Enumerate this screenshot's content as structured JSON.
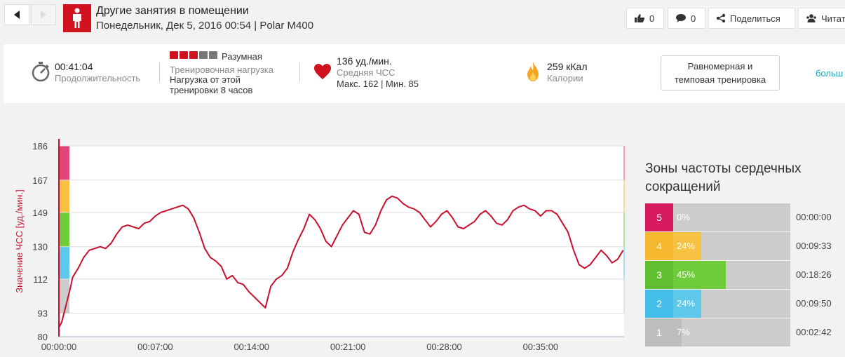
{
  "header": {
    "title": "Другие занятия в помещении",
    "subtitle": "Понедельник, Дек 5, 2016 00:54 | Polar M400",
    "like_count": "0",
    "comment_count": "0",
    "share_label": "Поделиться",
    "follow_label": "Читат"
  },
  "summary": {
    "duration_value": "00:41:04",
    "duration_label": "Продолжительность",
    "load_level": "Разумная",
    "load_filled": 3,
    "load_total": 5,
    "load_label": "Тренировочная нагрузка",
    "load_note_1": "Нагрузка от этой",
    "load_note_2": "тренировки 8 часов",
    "hr_value": "136 уд./мин.",
    "hr_label": "Средняя ЧСС",
    "hr_minmax": "Макс. 162 | Мин. 85",
    "calories_value": "259 кКал",
    "calories_label": "Калории",
    "workout_type": "Равномерная и темповая тренировка",
    "more_link": "больш"
  },
  "chart_data": {
    "type": "line",
    "ylabel": "Значение ЧСС [уд./мин.]",
    "ylim": [
      80,
      186
    ],
    "yticks": [
      "186",
      "167",
      "149",
      "130",
      "112",
      "93",
      "80"
    ],
    "ytick_values": [
      186,
      167,
      149,
      130,
      112,
      93,
      80
    ],
    "xticks": [
      "00:00:00",
      "00:07:00",
      "00:14:00",
      "00:21:00",
      "00:28:00",
      "00:35:00"
    ],
    "xtick_values": [
      0,
      7,
      14,
      21,
      28,
      35
    ],
    "xlim_min": [
      0,
      41.07
    ],
    "line_color": "#c8102e",
    "zone_colors": [
      "#e0457b",
      "#f7c242",
      "#6ecb3a",
      "#5ec8ea",
      "#cccccc"
    ],
    "series": [
      {
        "points": [
          [
            0.0,
            85
          ],
          [
            0.2,
            88
          ],
          [
            0.4,
            94
          ],
          [
            0.6,
            100
          ],
          [
            0.8,
            106
          ],
          [
            1.0,
            113
          ],
          [
            1.4,
            118
          ],
          [
            1.8,
            124
          ],
          [
            2.2,
            128
          ],
          [
            2.6,
            129
          ],
          [
            3.0,
            130
          ],
          [
            3.4,
            129
          ],
          [
            3.8,
            132
          ],
          [
            4.2,
            137
          ],
          [
            4.6,
            141
          ],
          [
            5.0,
            142
          ],
          [
            5.4,
            141
          ],
          [
            5.8,
            140
          ],
          [
            6.2,
            143
          ],
          [
            6.6,
            144
          ],
          [
            7.0,
            147
          ],
          [
            7.4,
            149
          ],
          [
            7.8,
            150
          ],
          [
            8.2,
            151
          ],
          [
            8.6,
            152
          ],
          [
            9.0,
            153
          ],
          [
            9.4,
            151
          ],
          [
            9.8,
            146
          ],
          [
            10.2,
            138
          ],
          [
            10.6,
            129
          ],
          [
            11.0,
            124
          ],
          [
            11.4,
            122
          ],
          [
            11.8,
            119
          ],
          [
            12.2,
            112
          ],
          [
            12.6,
            114
          ],
          [
            13.0,
            110
          ],
          [
            13.4,
            109
          ],
          [
            13.8,
            105
          ],
          [
            14.2,
            102
          ],
          [
            14.6,
            99
          ],
          [
            15.0,
            96
          ],
          [
            15.4,
            108
          ],
          [
            15.8,
            112
          ],
          [
            16.2,
            114
          ],
          [
            16.6,
            118
          ],
          [
            17.0,
            127
          ],
          [
            17.4,
            134
          ],
          [
            17.8,
            140
          ],
          [
            18.2,
            148
          ],
          [
            18.6,
            145
          ],
          [
            19.0,
            140
          ],
          [
            19.4,
            133
          ],
          [
            19.8,
            130
          ],
          [
            20.2,
            136
          ],
          [
            20.6,
            142
          ],
          [
            21.0,
            146
          ],
          [
            21.4,
            150
          ],
          [
            21.8,
            148
          ],
          [
            22.2,
            138
          ],
          [
            22.6,
            137
          ],
          [
            23.0,
            142
          ],
          [
            23.4,
            150
          ],
          [
            23.8,
            156
          ],
          [
            24.2,
            158
          ],
          [
            24.6,
            157
          ],
          [
            25.0,
            154
          ],
          [
            25.4,
            152
          ],
          [
            25.8,
            151
          ],
          [
            26.2,
            149
          ],
          [
            26.6,
            145
          ],
          [
            27.0,
            141
          ],
          [
            27.4,
            144
          ],
          [
            27.8,
            148
          ],
          [
            28.2,
            150
          ],
          [
            28.6,
            146
          ],
          [
            29.0,
            141
          ],
          [
            29.4,
            140
          ],
          [
            29.8,
            142
          ],
          [
            30.2,
            144
          ],
          [
            30.6,
            148
          ],
          [
            31.0,
            150
          ],
          [
            31.4,
            147
          ],
          [
            31.8,
            143
          ],
          [
            32.2,
            142
          ],
          [
            32.6,
            145
          ],
          [
            33.0,
            150
          ],
          [
            33.4,
            152
          ],
          [
            33.8,
            153
          ],
          [
            34.2,
            151
          ],
          [
            34.6,
            150
          ],
          [
            35.0,
            147
          ],
          [
            35.4,
            150
          ],
          [
            35.8,
            150
          ],
          [
            36.2,
            148
          ],
          [
            36.6,
            143
          ],
          [
            37.0,
            138
          ],
          [
            37.4,
            128
          ],
          [
            37.8,
            120
          ],
          [
            38.2,
            118
          ],
          [
            38.6,
            120
          ],
          [
            39.0,
            124
          ],
          [
            39.4,
            128
          ],
          [
            39.8,
            125
          ],
          [
            40.2,
            121
          ],
          [
            40.6,
            123
          ],
          [
            41.0,
            128
          ]
        ]
      }
    ]
  },
  "zones": {
    "title": "Зоны частоты сердечных сокращений",
    "items": [
      {
        "num": "5",
        "pct": "0%",
        "fraction": 0.0,
        "time": "00:00:00",
        "color": "#e0457b",
        "num_color": "#d81b60"
      },
      {
        "num": "4",
        "pct": "24%",
        "fraction": 0.24,
        "time": "00:09:33",
        "color": "#f7c242",
        "num_color": "#f5b82e"
      },
      {
        "num": "3",
        "pct": "45%",
        "fraction": 0.45,
        "time": "00:18:26",
        "color": "#6ecb3a",
        "num_color": "#5fbf2f"
      },
      {
        "num": "2",
        "pct": "24%",
        "fraction": 0.24,
        "time": "00:09:50",
        "color": "#5ec8ea",
        "num_color": "#44bde8"
      },
      {
        "num": "1",
        "pct": "7%",
        "fraction": 0.07,
        "time": "00:02:42",
        "color": "#bdbdbd",
        "num_color": "#bdbdbd"
      }
    ]
  }
}
